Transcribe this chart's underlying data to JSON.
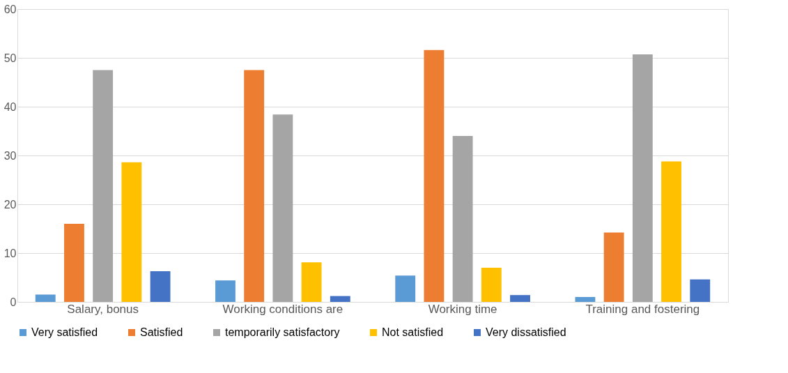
{
  "chart_data": {
    "type": "bar",
    "categories": [
      "Salary, bonus",
      "Working conditions are",
      "Working time",
      "Training and fostering"
    ],
    "series": [
      {
        "name": "Very satisfied",
        "color": "#5b9bd5",
        "values": [
          1.5,
          4.4,
          5.4,
          1.0
        ]
      },
      {
        "name": "Satisfied",
        "color": "#ed7d31",
        "values": [
          16,
          47.5,
          51.6,
          14.2
        ]
      },
      {
        "name": "temporarily satisfactory",
        "color": "#a5a5a5",
        "values": [
          47.5,
          38.4,
          34,
          50.7
        ]
      },
      {
        "name": "Not satisfied",
        "color": "#ffc000",
        "values": [
          28.6,
          8.1,
          7,
          28.8
        ]
      },
      {
        "name": "Very dissatisfied",
        "color": "#4472c4",
        "values": [
          6.3,
          1.2,
          1.4,
          4.6
        ]
      }
    ],
    "ylim": [
      0,
      60
    ],
    "yticks": [
      0,
      10,
      20,
      30,
      40,
      50,
      60
    ],
    "grid": "y",
    "legend": "bottom"
  }
}
